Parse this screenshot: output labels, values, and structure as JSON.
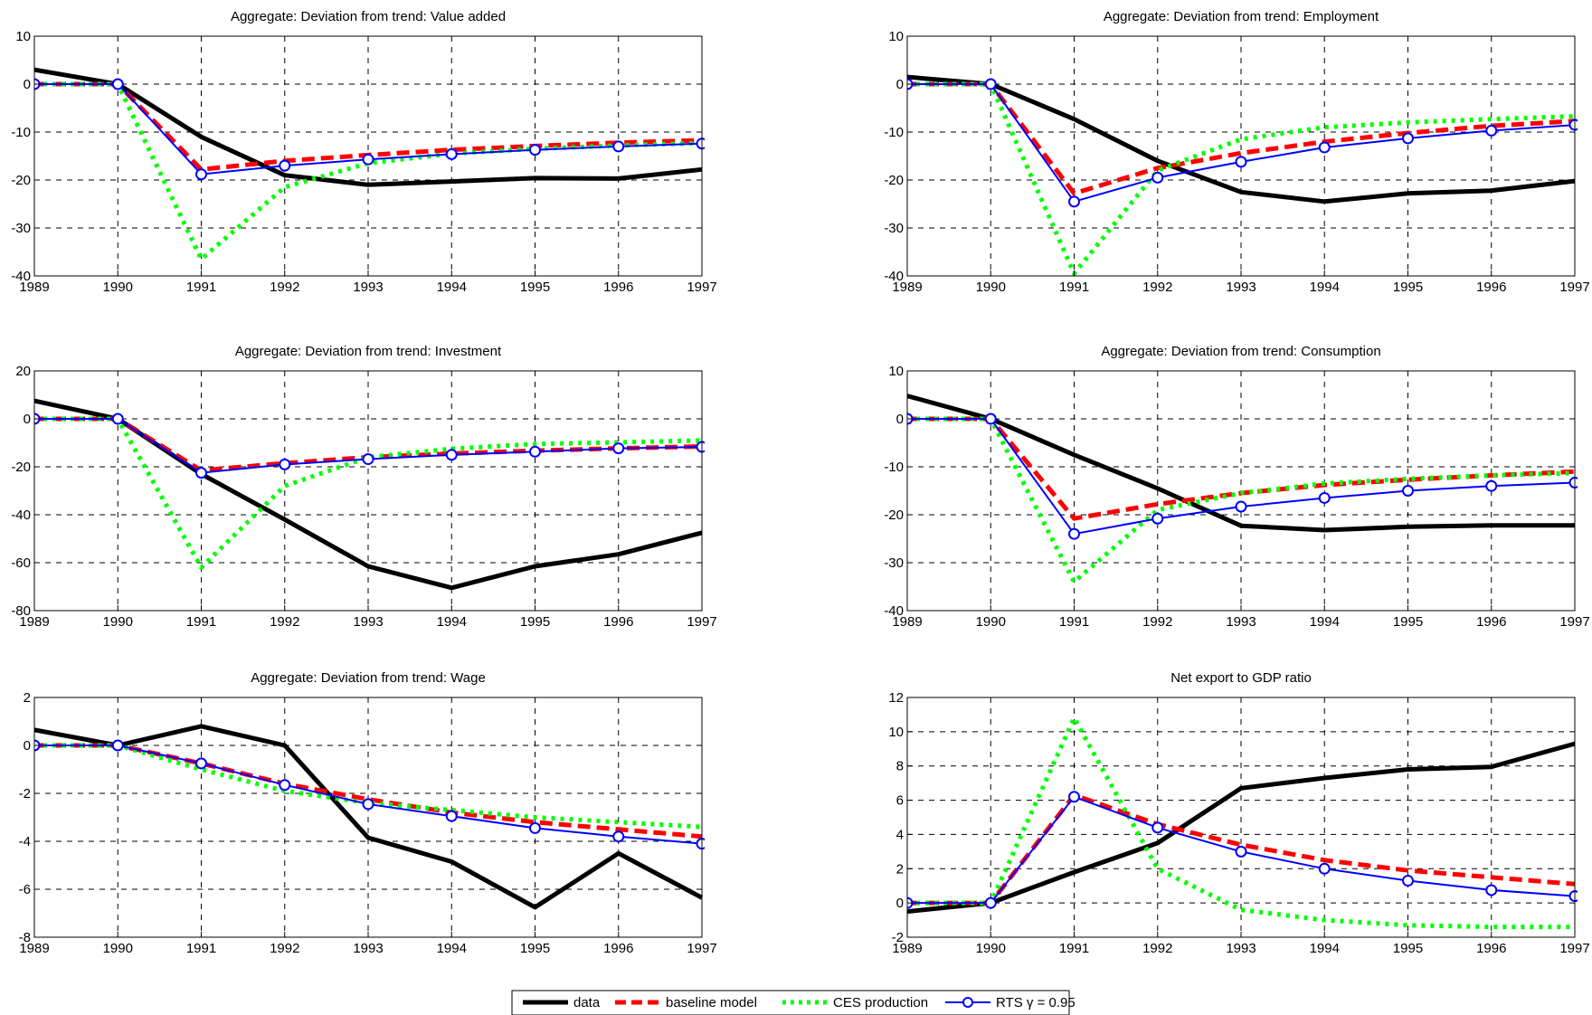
{
  "legend": {
    "items": [
      "data",
      "baseline model",
      "CES production",
      "RTS γ = 0.95"
    ]
  },
  "styles": {
    "data": {
      "color": "#000000"
    },
    "baseline": {
      "color": "#ff0000"
    },
    "ces": {
      "color": "#00ff00"
    },
    "rts": {
      "color": "#0000ff",
      "marker_fill": "#ffffff"
    }
  },
  "chart_data": [
    {
      "type": "line",
      "title": "Aggregate: Deviation from trend: Value added",
      "x": [
        1989,
        1990,
        1991,
        1992,
        1993,
        1994,
        1995,
        1996,
        1997
      ],
      "xlim": [
        1989,
        1997
      ],
      "ylim": [
        -40,
        10
      ],
      "yticks": [
        -40,
        -30,
        -20,
        -10,
        0,
        10
      ],
      "grid": true,
      "series": [
        {
          "name": "data",
          "key": "data",
          "values": [
            3,
            0,
            -11,
            -19,
            -21,
            -20.3,
            -19.6,
            -19.7,
            -17.8
          ]
        },
        {
          "name": "baseline model",
          "key": "baseline",
          "values": [
            0,
            0,
            -17.8,
            -16,
            -14.8,
            -13.7,
            -12.9,
            -12.2,
            -11.7
          ]
        },
        {
          "name": "CES production",
          "key": "ces",
          "values": [
            0,
            0,
            -36.5,
            -21.5,
            -16.5,
            -14.5,
            -13.5,
            -12.8,
            -12.3
          ]
        },
        {
          "name": "RTS γ = 0.95",
          "key": "rts",
          "values": [
            0,
            0,
            -18.8,
            -17,
            -15.7,
            -14.6,
            -13.7,
            -13,
            -12.4
          ]
        }
      ]
    },
    {
      "type": "line",
      "title": "Aggregate: Deviation from trend: Employment",
      "x": [
        1989,
        1990,
        1991,
        1992,
        1993,
        1994,
        1995,
        1996,
        1997
      ],
      "xlim": [
        1989,
        1997
      ],
      "ylim": [
        -40,
        10
      ],
      "yticks": [
        -40,
        -30,
        -20,
        -10,
        0,
        10
      ],
      "grid": true,
      "series": [
        {
          "name": "data",
          "key": "data",
          "values": [
            1.5,
            0,
            -7.3,
            -16,
            -22.5,
            -24.5,
            -22.8,
            -22.2,
            -20.2
          ]
        },
        {
          "name": "baseline model",
          "key": "baseline",
          "values": [
            0,
            0,
            -22.8,
            -17.5,
            -14.4,
            -12,
            -10.2,
            -8.7,
            -7.7
          ]
        },
        {
          "name": "CES production",
          "key": "ces",
          "values": [
            0,
            0,
            -39.5,
            -18,
            -11.5,
            -9,
            -8,
            -7.3,
            -6.7
          ]
        },
        {
          "name": "RTS γ = 0.95",
          "key": "rts",
          "values": [
            0,
            0,
            -24.5,
            -19.5,
            -16.2,
            -13.2,
            -11.3,
            -9.7,
            -8.5
          ]
        }
      ]
    },
    {
      "type": "line",
      "title": "Aggregate: Deviation from trend: Investment",
      "x": [
        1989,
        1990,
        1991,
        1992,
        1993,
        1994,
        1995,
        1996,
        1997
      ],
      "xlim": [
        1989,
        1997
      ],
      "ylim": [
        -80,
        20
      ],
      "yticks": [
        -80,
        -60,
        -40,
        -20,
        0,
        20
      ],
      "grid": true,
      "series": [
        {
          "name": "data",
          "key": "data",
          "values": [
            7.5,
            0,
            -23,
            -42,
            -61.5,
            -70.5,
            -61.5,
            -56.5,
            -47.5
          ]
        },
        {
          "name": "baseline model",
          "key": "baseline",
          "values": [
            0,
            0,
            -21.5,
            -18.5,
            -16,
            -14.5,
            -13.3,
            -12.3,
            -11.5
          ]
        },
        {
          "name": "CES production",
          "key": "ces",
          "values": [
            0,
            0,
            -62,
            -28,
            -16,
            -12.5,
            -10.5,
            -9.8,
            -9
          ]
        },
        {
          "name": "RTS γ = 0.95",
          "key": "rts",
          "values": [
            0,
            0,
            -22.5,
            -19,
            -16.8,
            -15,
            -13.7,
            -12.3,
            -11.7
          ]
        }
      ]
    },
    {
      "type": "line",
      "title": "Aggregate: Deviation from trend: Consumption",
      "x": [
        1989,
        1990,
        1991,
        1992,
        1993,
        1994,
        1995,
        1996,
        1997
      ],
      "xlim": [
        1989,
        1997
      ],
      "ylim": [
        -40,
        10
      ],
      "yticks": [
        -40,
        -30,
        -20,
        -10,
        0,
        10
      ],
      "grid": true,
      "series": [
        {
          "name": "data",
          "key": "data",
          "values": [
            4.8,
            0,
            -7.5,
            -14.5,
            -22.3,
            -23.2,
            -22.5,
            -22.2,
            -22.2
          ]
        },
        {
          "name": "baseline model",
          "key": "baseline",
          "values": [
            0,
            0,
            -20.8,
            -17.8,
            -15.5,
            -13.8,
            -12.7,
            -11.8,
            -11
          ]
        },
        {
          "name": "CES production",
          "key": "ces",
          "values": [
            0,
            0,
            -34,
            -19,
            -15.5,
            -13.5,
            -12.5,
            -11.8,
            -11.3
          ]
        },
        {
          "name": "RTS γ = 0.95",
          "key": "rts",
          "values": [
            0,
            0,
            -24,
            -20.8,
            -18.3,
            -16.5,
            -15,
            -14,
            -13.3
          ]
        }
      ]
    },
    {
      "type": "line",
      "title": "Aggregate: Deviation from trend: Wage",
      "x": [
        1989,
        1990,
        1991,
        1992,
        1993,
        1994,
        1995,
        1996,
        1997
      ],
      "xlim": [
        1989,
        1997
      ],
      "ylim": [
        -8,
        2
      ],
      "yticks": [
        -8,
        -6,
        -4,
        -2,
        0,
        2
      ],
      "grid": true,
      "series": [
        {
          "name": "data",
          "key": "data",
          "values": [
            0.65,
            0,
            0.8,
            0,
            -3.85,
            -4.85,
            -6.75,
            -4.5,
            -6.35
          ]
        },
        {
          "name": "baseline model",
          "key": "baseline",
          "values": [
            0,
            0,
            -0.75,
            -1.6,
            -2.25,
            -2.8,
            -3.2,
            -3.5,
            -3.8
          ]
        },
        {
          "name": "CES production",
          "key": "ces",
          "values": [
            0,
            0,
            -1,
            -1.9,
            -2.4,
            -2.7,
            -3,
            -3.2,
            -3.4
          ]
        },
        {
          "name": "RTS γ = 0.95",
          "key": "rts",
          "values": [
            0,
            0,
            -0.75,
            -1.65,
            -2.45,
            -2.95,
            -3.45,
            -3.8,
            -4.1
          ]
        }
      ]
    },
    {
      "type": "line",
      "title": "Net export to GDP ratio",
      "x": [
        1989,
        1990,
        1991,
        1992,
        1993,
        1994,
        1995,
        1996,
        1997
      ],
      "xlim": [
        1989,
        1997
      ],
      "ylim": [
        -2,
        12
      ],
      "yticks": [
        -2,
        0,
        2,
        4,
        6,
        8,
        10,
        12
      ],
      "grid": true,
      "series": [
        {
          "name": "data",
          "key": "data",
          "values": [
            -0.5,
            0,
            1.8,
            3.5,
            6.7,
            7.3,
            7.8,
            7.95,
            9.3
          ]
        },
        {
          "name": "baseline model",
          "key": "baseline",
          "values": [
            0,
            0,
            6.3,
            4.6,
            3.4,
            2.5,
            1.9,
            1.5,
            1.1
          ]
        },
        {
          "name": "CES production",
          "key": "ces",
          "values": [
            0,
            0,
            10.8,
            2,
            -0.4,
            -1,
            -1.3,
            -1.4,
            -1.4
          ]
        },
        {
          "name": "RTS γ = 0.95",
          "key": "rts",
          "values": [
            0,
            0,
            6.2,
            4.4,
            3,
            2,
            1.3,
            0.75,
            0.4
          ]
        }
      ]
    }
  ]
}
